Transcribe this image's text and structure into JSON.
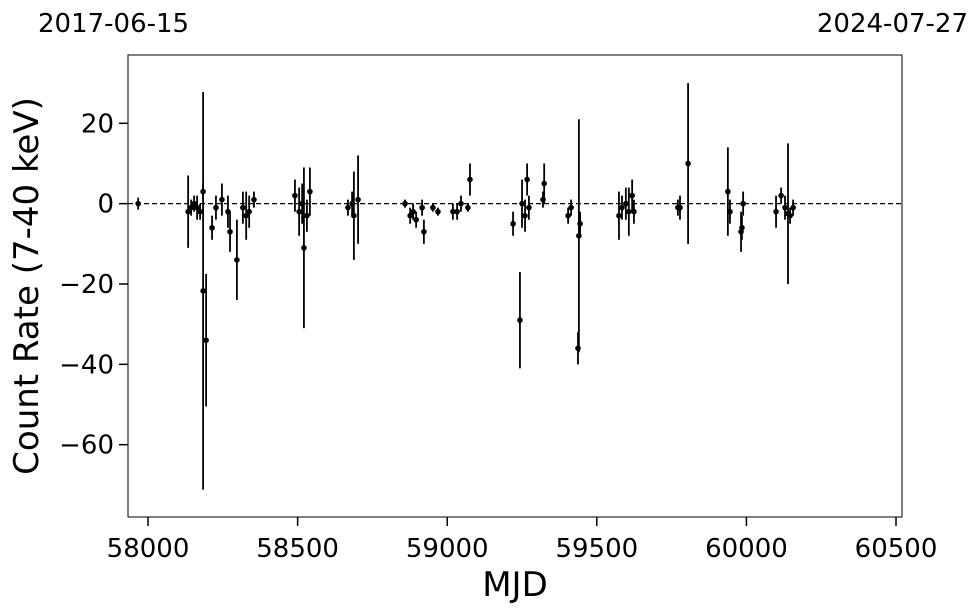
{
  "chart_data": {
    "type": "scatter",
    "top_labels": [
      "2017-06-15",
      "2024-07-27"
    ],
    "x_label": "MJD",
    "y_label": "Count Rate (7-40 keV)",
    "xlim": [
      57933,
      60520
    ],
    "ylim": [
      -78,
      37
    ],
    "xticks": [
      58000,
      58500,
      59000,
      59500,
      60000,
      60500
    ],
    "yticks": [
      {
        "value": -60,
        "label": "−60"
      },
      {
        "value": -40,
        "label": "−40"
      },
      {
        "value": -20,
        "label": "−20"
      },
      0,
      20
    ],
    "hline": 0,
    "color": "#000000",
    "series": [
      {
        "x": [
          57967,
          58134,
          58144,
          58154,
          58164,
          58174,
          58184,
          58184,
          58194,
          58214,
          58227,
          58247,
          58267,
          58274,
          58297,
          58317,
          58328,
          58338,
          58354,
          58491,
          58505,
          58515,
          58521,
          58531,
          58541,
          58668,
          58682,
          58688,
          58702,
          58859,
          58876,
          58886,
          58896,
          58916,
          58922,
          58952,
          58969,
          59019,
          59033,
          59046,
          59069,
          59076,
          59220,
          59243,
          59250,
          59260,
          59267,
          59273,
          59320,
          59324,
          59404,
          59414,
          59437,
          59440,
          59444,
          59574,
          59584,
          59597,
          59607,
          59618,
          59624,
          59771,
          59778,
          59805,
          59938,
          59945,
          59982,
          59985,
          59989,
          60099,
          60116,
          60129,
          60139,
          60146,
          60156
        ],
        "values": [
          0,
          -2,
          -1,
          0,
          -1,
          -2,
          3,
          -21.7,
          -34,
          -6,
          -1,
          1,
          -2,
          -7,
          -14,
          -1,
          -3,
          -2,
          1,
          2,
          -2,
          0,
          -11,
          -3,
          3,
          -1,
          0,
          -3,
          1,
          0,
          -3,
          -2,
          -4,
          -1,
          -7,
          -1,
          -2,
          -2,
          -2,
          0,
          -1,
          6,
          -5,
          -29,
          0,
          -3,
          6,
          -1,
          1,
          5,
          -3,
          -1,
          -36,
          -8,
          -5,
          -3,
          -1,
          0,
          -2,
          2,
          -2,
          -1,
          -1,
          10,
          3,
          -2,
          -7,
          -6,
          0,
          -2,
          2,
          -1,
          -2.5,
          -3,
          -1
        ],
        "errors": [
          1.5,
          9,
          2,
          2,
          3,
          2,
          2,
          49.5,
          16.5,
          3,
          3,
          4,
          4,
          5,
          10,
          4,
          6,
          4,
          2,
          4,
          6,
          5,
          20,
          4,
          6,
          2,
          3,
          11,
          11,
          1,
          2,
          2,
          2,
          2,
          3,
          1,
          1,
          2,
          2,
          2,
          1,
          4,
          3,
          12,
          6,
          4,
          4,
          3,
          2,
          5,
          2,
          2,
          4,
          29,
          3,
          6,
          3,
          4,
          6,
          4,
          3,
          2,
          3,
          20,
          11,
          3,
          5,
          3,
          3,
          4,
          2,
          3,
          17.5,
          2,
          2
        ]
      }
    ]
  }
}
